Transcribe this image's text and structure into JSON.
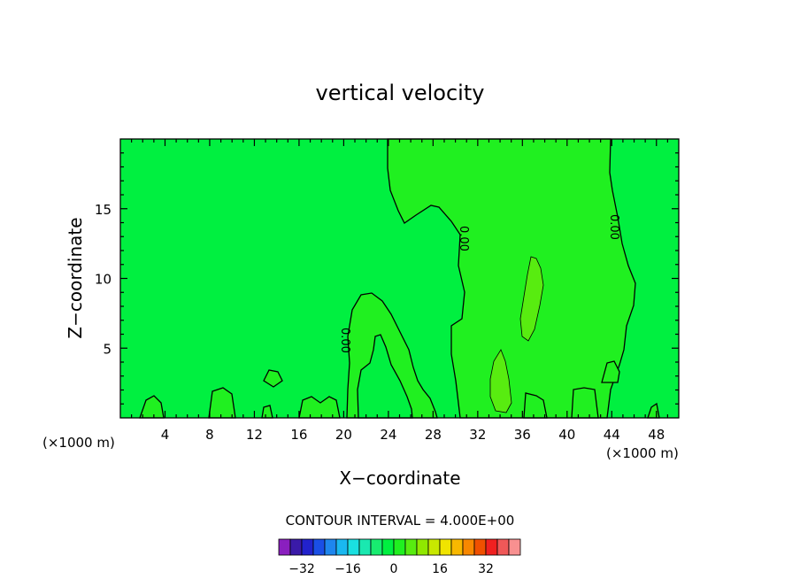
{
  "chart_data": {
    "type": "contour",
    "title": "vertical velocity",
    "xlabel": "X−coordinate",
    "ylabel": "Z−coordinate",
    "x_unit_left": "(×1000 m)",
    "x_unit_right": "(×1000 m)",
    "xlim": [
      0,
      50
    ],
    "ylim": [
      0,
      20
    ],
    "x_ticks": [
      4,
      8,
      12,
      16,
      20,
      24,
      28,
      32,
      36,
      40,
      44,
      48
    ],
    "y_ticks": [
      5,
      10,
      15
    ],
    "contour_interval_text": "CONTOUR INTERVAL =  4.000E+00",
    "contour_label": "0.00",
    "colorbar": {
      "colors": [
        "#8a1fbf",
        "#3a1aa8",
        "#2222cc",
        "#1a4fe6",
        "#1e86ee",
        "#1ab8f0",
        "#1ae0e0",
        "#1ae8b0",
        "#18ec70",
        "#00f040",
        "#20f020",
        "#58ec10",
        "#90e800",
        "#c8e800",
        "#f0e400",
        "#f8b800",
        "#f88800",
        "#f05000",
        "#f02020",
        "#f05858",
        "#f89090"
      ],
      "labels": [
        "−32",
        "−16",
        "0",
        "16",
        "32"
      ]
    }
  }
}
